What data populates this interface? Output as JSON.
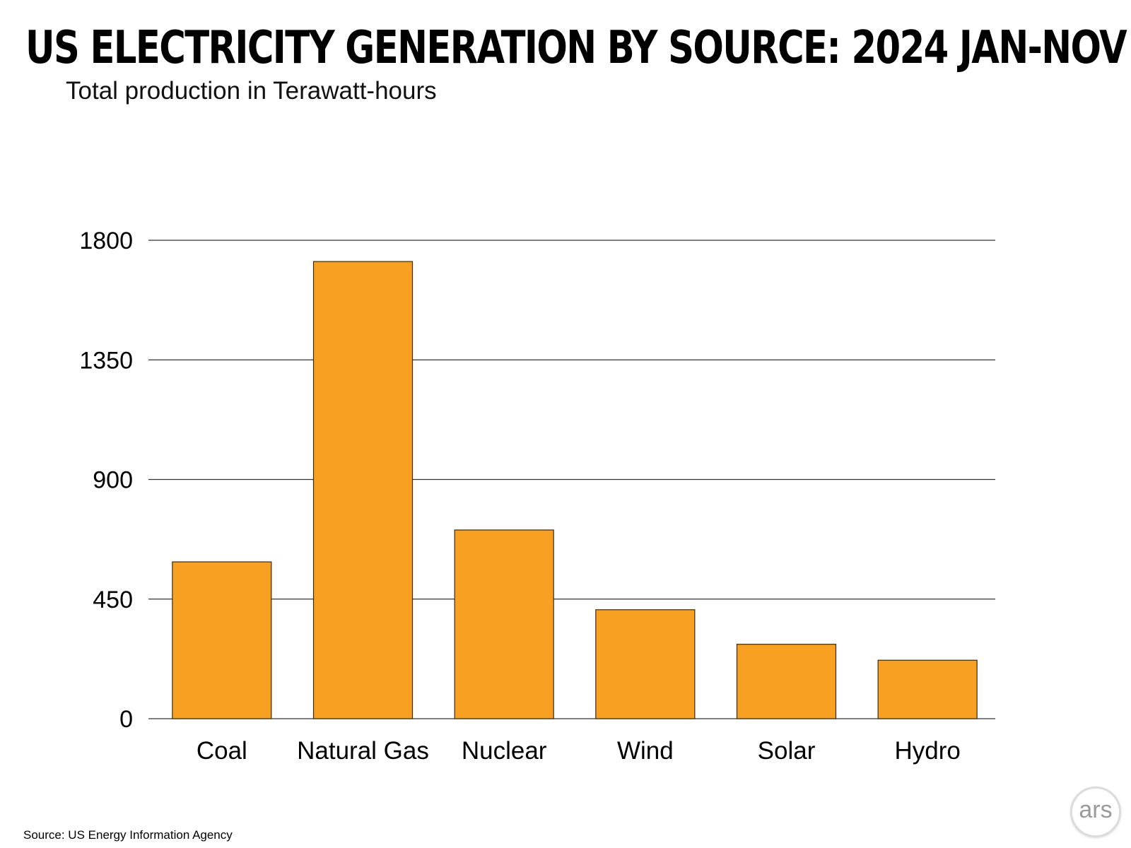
{
  "chart_data": {
    "type": "bar",
    "title": "US Electricity Generation by Source: 2024 Jan-Nov",
    "subtitle": "Total production in Terawatt-hours",
    "categories": [
      "Coal",
      "Natural Gas",
      "Nuclear",
      "Wind",
      "Solar",
      "Hydro"
    ],
    "values": [
      590,
      1720,
      710,
      410,
      280,
      220
    ],
    "yticks": [
      0,
      450,
      900,
      1350,
      1800
    ],
    "ylim": [
      0,
      1800
    ],
    "grid": true,
    "legend": "none",
    "bar_color": "#F7A021",
    "source": "Source:  US Energy Information Agency"
  },
  "branding": {
    "logo_text": "ars"
  }
}
